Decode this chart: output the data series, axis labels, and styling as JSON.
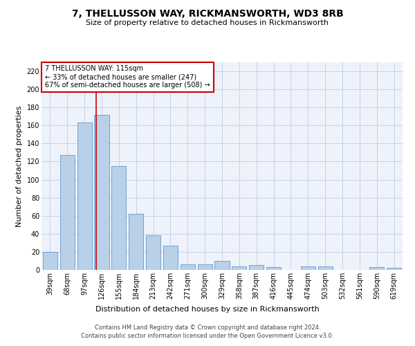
{
  "title": "7, THELLUSSON WAY, RICKMANSWORTH, WD3 8RB",
  "subtitle": "Size of property relative to detached houses in Rickmansworth",
  "xlabel": "Distribution of detached houses by size in Rickmansworth",
  "ylabel": "Number of detached properties",
  "categories": [
    "39sqm",
    "68sqm",
    "97sqm",
    "126sqm",
    "155sqm",
    "184sqm",
    "213sqm",
    "242sqm",
    "271sqm",
    "300sqm",
    "329sqm",
    "358sqm",
    "387sqm",
    "416sqm",
    "445sqm",
    "474sqm",
    "503sqm",
    "532sqm",
    "561sqm",
    "590sqm",
    "619sqm"
  ],
  "values": [
    20,
    127,
    163,
    172,
    115,
    62,
    38,
    27,
    6,
    6,
    10,
    4,
    5,
    3,
    0,
    4,
    4,
    0,
    0,
    3,
    2
  ],
  "bar_color": "#b8d0e8",
  "bar_edge_color": "#6699cc",
  "vline_x": 2.67,
  "vline_color": "#cc0000",
  "annotation_text": "7 THELLUSSON WAY: 115sqm\n← 33% of detached houses are smaller (247)\n67% of semi-detached houses are larger (508) →",
  "annotation_box_color": "#ffffff",
  "annotation_box_edge": "#cc0000",
  "ylim": [
    0,
    230
  ],
  "yticks": [
    0,
    20,
    40,
    60,
    80,
    100,
    120,
    140,
    160,
    180,
    200,
    220
  ],
  "footer": "Contains HM Land Registry data © Crown copyright and database right 2024.\nContains public sector information licensed under the Open Government Licence v3.0.",
  "bg_color": "#eef2fb",
  "grid_color": "#c8d0e8",
  "title_fontsize": 10,
  "subtitle_fontsize": 8,
  "xlabel_fontsize": 8,
  "ylabel_fontsize": 8,
  "tick_fontsize": 7,
  "footer_fontsize": 6,
  "ann_fontsize": 7
}
